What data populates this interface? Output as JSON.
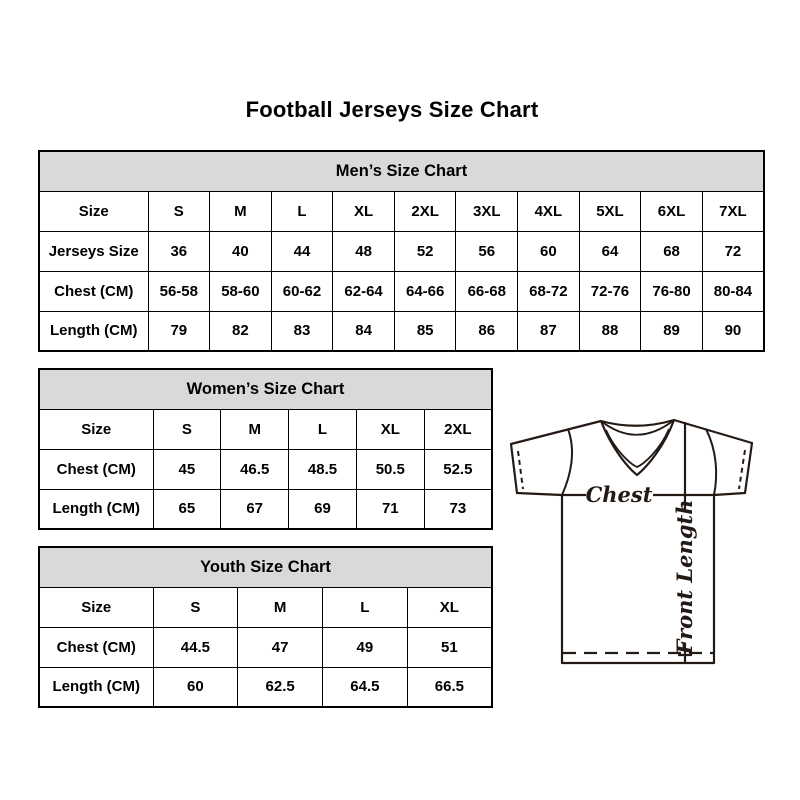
{
  "page_title": "Football Jerseys Size Chart",
  "tables": {
    "men": {
      "title": "Men’s Size Chart",
      "rows": [
        [
          "Size",
          "S",
          "M",
          "L",
          "XL",
          "2XL",
          "3XL",
          "4XL",
          "5XL",
          "6XL",
          "7XL"
        ],
        [
          "Jerseys Size",
          "36",
          "40",
          "44",
          "48",
          "52",
          "56",
          "60",
          "64",
          "68",
          "72"
        ],
        [
          "Chest (CM)",
          "56-58",
          "58-60",
          "60-62",
          "62-64",
          "64-66",
          "66-68",
          "68-72",
          "72-76",
          "76-80",
          "80-84"
        ],
        [
          "Length (CM)",
          "79",
          "82",
          "83",
          "84",
          "85",
          "86",
          "87",
          "88",
          "89",
          "90"
        ]
      ]
    },
    "women": {
      "title": "Women’s Size Chart",
      "rows": [
        [
          "Size",
          "S",
          "M",
          "L",
          "XL",
          "2XL"
        ],
        [
          "Chest (CM)",
          "45",
          "46.5",
          "48.5",
          "50.5",
          "52.5"
        ],
        [
          "Length (CM)",
          "65",
          "67",
          "69",
          "71",
          "73"
        ]
      ]
    },
    "youth": {
      "title": "Youth Size Chart",
      "rows": [
        [
          "Size",
          "S",
          "M",
          "L",
          "XL"
        ],
        [
          "Chest (CM)",
          "44.5",
          "47",
          "49",
          "51"
        ],
        [
          "Length (CM)",
          "60",
          "62.5",
          "64.5",
          "66.5"
        ]
      ]
    }
  },
  "diagram": {
    "chest_label": "Chest",
    "front_length_label": "Front Length"
  },
  "colors": {
    "header_bg": "#d9d9d9",
    "table_border": "#000000",
    "text": "#000000",
    "diagram_line": "#241a15",
    "background": "#ffffff"
  }
}
